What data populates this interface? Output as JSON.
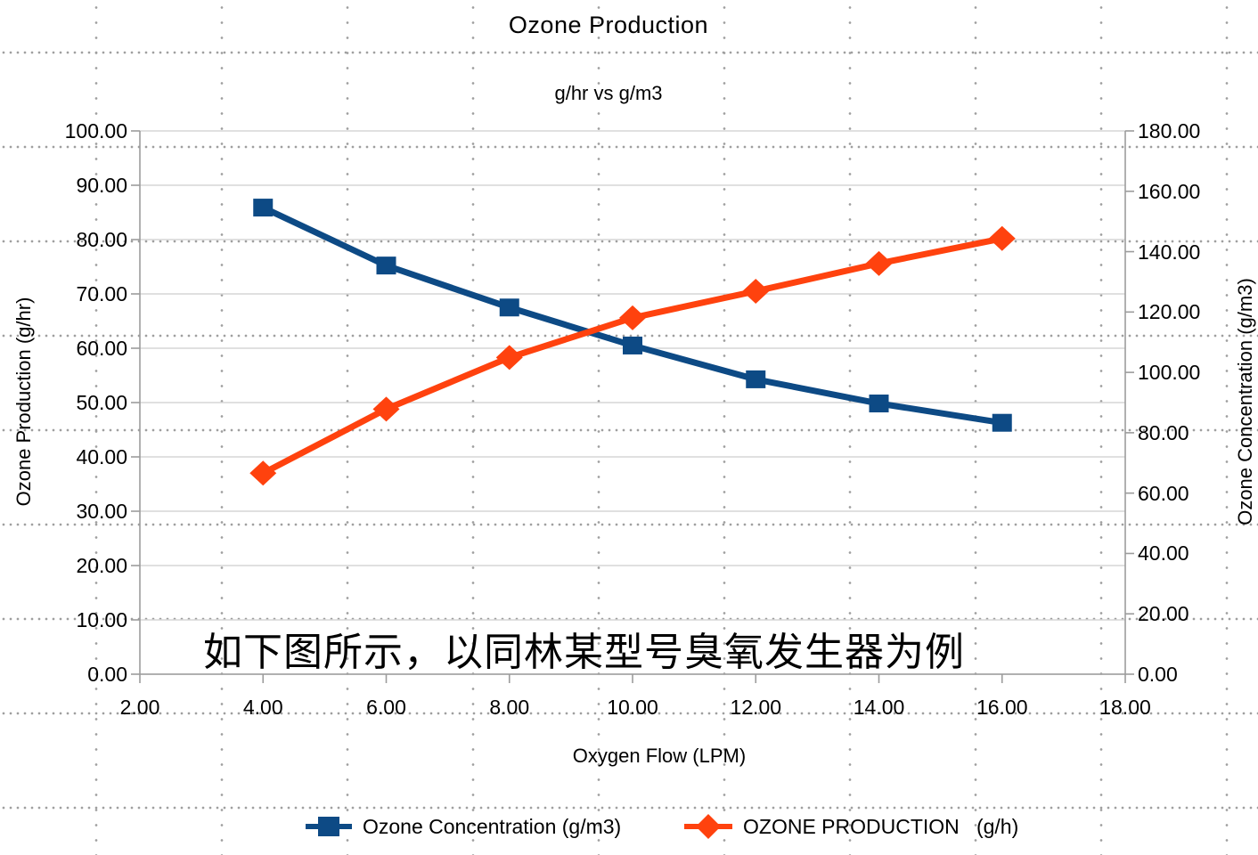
{
  "title": "Ozone Production",
  "subtitle": "g/hr vs g/m3",
  "annotation": "如下图所示，以同林某型号臭氧发生器为例",
  "axes": {
    "x": {
      "label": "Oxygen Flow (LPM)",
      "min": 2,
      "max": 18,
      "tick_values": [
        2,
        4,
        6,
        8,
        10,
        12,
        14,
        16,
        18
      ],
      "tick_labels": [
        "2.00",
        "4.00",
        "6.00",
        "8.00",
        "10.00",
        "12.00",
        "14.00",
        "16.00",
        "18.00"
      ]
    },
    "y_left": {
      "label": "Ozone Production (g/hr)",
      "min": 0,
      "max": 100,
      "tick_values": [
        0,
        10,
        20,
        30,
        40,
        50,
        60,
        70,
        80,
        90,
        100
      ],
      "tick_labels": [
        "0.00",
        "10.00",
        "20.00",
        "30.00",
        "40.00",
        "50.00",
        "60.00",
        "70.00",
        "80.00",
        "90.00",
        "100.00"
      ]
    },
    "y_right": {
      "label": "Ozone Concentration (g/m3)",
      "min": 0,
      "max": 180,
      "tick_values": [
        0,
        20,
        40,
        60,
        80,
        100,
        120,
        140,
        160,
        180
      ],
      "tick_labels": [
        "0.00",
        "20.00",
        "40.00",
        "60.00",
        "80.00",
        "100.00",
        "120.00",
        "140.00",
        "160.00",
        "180.00"
      ]
    }
  },
  "legend": {
    "items": [
      {
        "label": "Ozone Concentration (g/m3)",
        "color": "#0d4a85",
        "marker": "square"
      },
      {
        "label": "OZONE PRODUCTION   (g/h)",
        "color": "#ff420e",
        "marker": "diamond"
      }
    ]
  },
  "colors": {
    "series_concentration": "#0d4a85",
    "series_production": "#ff420e",
    "gridline": "#d6d6d6",
    "axis_line": "#9c9c9c",
    "background_dots": "#9f9f9f",
    "text": "#000000"
  },
  "chart_data": {
    "type": "line",
    "title": "Ozone Production",
    "subtitle": "g/hr vs g/m3",
    "xlabel": "Oxygen Flow (LPM)",
    "ylabel_left": "Ozone Production (g/hr)",
    "ylabel_right": "Ozone Concentration (g/m3)",
    "xlim": [
      2,
      18
    ],
    "ylim_left": [
      0,
      100
    ],
    "ylim_right": [
      0,
      180
    ],
    "grid": "horizontal",
    "legend_position": "bottom",
    "x": [
      4,
      6,
      8,
      10,
      12,
      14,
      16
    ],
    "series": [
      {
        "name": "Ozone Concentration (g/m3)",
        "axis": "right",
        "color": "#0d4a85",
        "marker": "square",
        "values": [
          154.6,
          135.4,
          121.5,
          108.9,
          97.7,
          89.7,
          83.3
        ]
      },
      {
        "name": "OZONE PRODUCTION   (g/h)",
        "axis": "left",
        "color": "#ff420e",
        "marker": "diamond",
        "values": [
          37.0,
          48.8,
          58.3,
          65.6,
          70.5,
          75.6,
          80.2
        ]
      }
    ]
  }
}
